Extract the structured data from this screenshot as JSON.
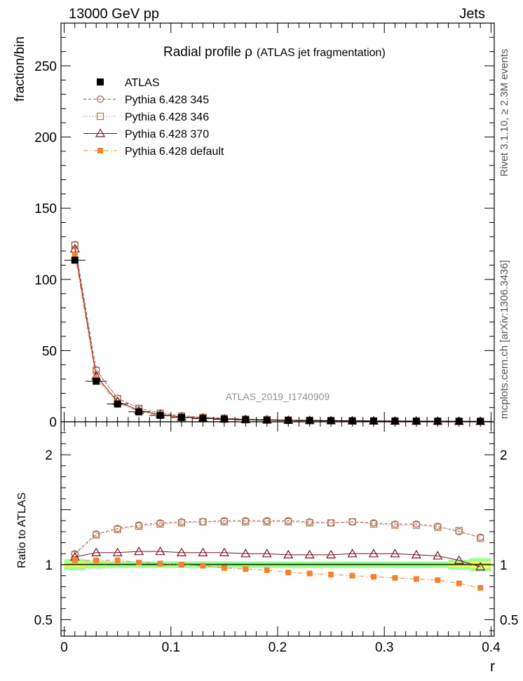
{
  "header": {
    "left": "13000 GeV pp",
    "right": "Jets",
    "title_main": "Radial profile  ρ",
    "title_sub": "(ATLAS jet fragmentation)",
    "watermark": "ATLAS_2019_I1740909",
    "side_top": "Rivet 3.1.10, ≥ 2.3M events",
    "side_bottom": "mcplots.cern.ch [arXiv:1306.3436]"
  },
  "colors": {
    "atlas": "#000000",
    "p345": "#b0565c",
    "p346": "#a57b4a",
    "p370": "#7a0f22",
    "default": "#f5812f",
    "band_inner": "#ffff55",
    "band_outer": "#99ff99"
  },
  "chart_data": [
    {
      "type": "scatter",
      "name": "main",
      "xlabel": "",
      "ylabel": "fraction/bin",
      "xlim": [
        -0.003,
        0.403
      ],
      "ylim": [
        0,
        280
      ],
      "yticks": [
        0,
        50,
        100,
        150,
        200,
        250
      ],
      "ytick_labels": [
        "0",
        "50",
        "100",
        "150",
        "200",
        "250"
      ],
      "x": [
        0.01,
        0.03,
        0.05,
        0.07,
        0.09,
        0.11,
        0.13,
        0.15,
        0.17,
        0.19,
        0.21,
        0.23,
        0.25,
        0.27,
        0.29,
        0.31,
        0.33,
        0.35,
        0.37,
        0.39
      ],
      "series": [
        {
          "name": "ATLAS",
          "style": "data",
          "values": [
            113.5,
            28.5,
            12.5,
            7.0,
            4.5,
            3.0,
            2.3,
            1.8,
            1.4,
            1.15,
            0.95,
            0.8,
            0.7,
            0.6,
            0.52,
            0.45,
            0.4,
            0.35,
            0.31,
            0.28
          ]
        },
        {
          "name": "Pythia 6.428 345",
          "style": "circle",
          "values": [
            124.5,
            36.5,
            16.5,
            9.5,
            6.2,
            4.2,
            3.2,
            2.5,
            1.95,
            1.6,
            1.3,
            1.1,
            0.95,
            0.83,
            0.72,
            0.62,
            0.55,
            0.47,
            0.4,
            0.34
          ]
        },
        {
          "name": "Pythia 6.428 346",
          "style": "square",
          "values": [
            124.0,
            36.0,
            16.3,
            9.4,
            6.1,
            4.1,
            3.1,
            2.45,
            1.9,
            1.55,
            1.28,
            1.08,
            0.93,
            0.82,
            0.71,
            0.61,
            0.54,
            0.46,
            0.4,
            0.34
          ]
        },
        {
          "name": "Pythia 6.428 370",
          "style": "triangle",
          "values": [
            121.5,
            32.0,
            14.3,
            8.0,
            5.1,
            3.3,
            2.6,
            2.0,
            1.6,
            1.3,
            1.05,
            0.88,
            0.78,
            0.67,
            0.58,
            0.5,
            0.45,
            0.38,
            0.32,
            0.27
          ]
        },
        {
          "name": "Pythia 6.428 default",
          "style": "filled-square",
          "values": [
            117.5,
            30.0,
            13.1,
            7.2,
            4.55,
            3.0,
            2.25,
            1.75,
            1.35,
            1.08,
            0.87,
            0.72,
            0.62,
            0.53,
            0.46,
            0.39,
            0.34,
            0.3,
            0.26,
            0.22
          ]
        }
      ]
    },
    {
      "type": "scatter",
      "name": "ratio",
      "xlabel": "r",
      "ylabel": "Ratio to ATLAS",
      "xlim": [
        -0.003,
        0.403
      ],
      "ylim": [
        0.35,
        2.3
      ],
      "yticks": [
        0.5,
        1,
        2
      ],
      "ytick_labels": [
        "0.5",
        "1",
        "2"
      ],
      "xticks": [
        0,
        0.1,
        0.2,
        0.3,
        0.4
      ],
      "xtick_labels": [
        "0",
        "0.1",
        "0.2",
        "0.3",
        "0.4"
      ],
      "x": [
        0.01,
        0.03,
        0.05,
        0.07,
        0.09,
        0.11,
        0.13,
        0.15,
        0.17,
        0.19,
        0.21,
        0.23,
        0.25,
        0.27,
        0.29,
        0.31,
        0.33,
        0.35,
        0.37,
        0.39
      ],
      "band_outer_halfwidth": [
        0.05,
        0.035,
        0.03,
        0.03,
        0.03,
        0.03,
        0.03,
        0.03,
        0.03,
        0.03,
        0.03,
        0.03,
        0.03,
        0.03,
        0.03,
        0.03,
        0.03,
        0.03,
        0.045,
        0.06
      ],
      "band_inner_halfwidth": [
        0.02,
        0.015,
        0.012,
        0.01,
        0.01,
        0.01,
        0.01,
        0.01,
        0.01,
        0.01,
        0.01,
        0.01,
        0.01,
        0.01,
        0.01,
        0.01,
        0.01,
        0.012,
        0.02,
        0.03
      ],
      "series": [
        {
          "name": "Pythia 6.428 345",
          "style": "circle",
          "values": [
            1.1,
            1.28,
            1.33,
            1.36,
            1.38,
            1.39,
            1.39,
            1.4,
            1.4,
            1.4,
            1.4,
            1.39,
            1.38,
            1.39,
            1.38,
            1.37,
            1.37,
            1.35,
            1.3,
            1.25
          ]
        },
        {
          "name": "Pythia 6.428 346",
          "style": "square",
          "values": [
            1.09,
            1.27,
            1.32,
            1.35,
            1.37,
            1.38,
            1.39,
            1.39,
            1.39,
            1.39,
            1.39,
            1.38,
            1.38,
            1.39,
            1.37,
            1.36,
            1.36,
            1.34,
            1.31,
            1.24
          ]
        },
        {
          "name": "Pythia 6.428 370",
          "style": "triangle",
          "values": [
            1.07,
            1.11,
            1.11,
            1.12,
            1.12,
            1.11,
            1.11,
            1.11,
            1.1,
            1.1,
            1.09,
            1.09,
            1.09,
            1.1,
            1.1,
            1.1,
            1.09,
            1.08,
            1.04,
            0.98
          ]
        },
        {
          "name": "Pythia 6.428 default",
          "style": "filled-square",
          "values": [
            1.04,
            1.04,
            1.04,
            1.02,
            1.01,
            1.0,
            0.99,
            0.97,
            0.96,
            0.95,
            0.93,
            0.92,
            0.91,
            0.9,
            0.89,
            0.88,
            0.87,
            0.86,
            0.83,
            0.79
          ]
        }
      ]
    }
  ]
}
